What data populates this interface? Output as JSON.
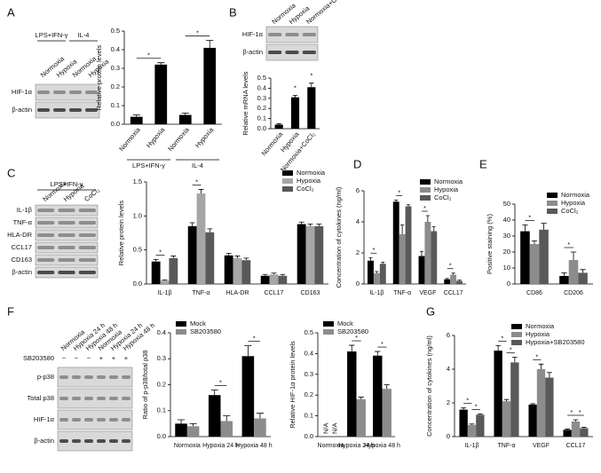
{
  "panels": [
    "A",
    "B",
    "C",
    "D",
    "E",
    "F",
    "G"
  ],
  "blots": [
    {
      "groups": [
        {
          "label": "LPS+IFN-γ",
          "span": [
            0,
            1
          ]
        },
        {
          "label": "IL-4",
          "span": [
            2,
            3
          ]
        }
      ],
      "lanes": [
        "Normoxia",
        "Hypoxia",
        "Normoxia",
        "Hypoxia"
      ],
      "rows": [
        "HIF-1α",
        "β-actin"
      ]
    },
    {
      "lanes": [
        "Normoxia",
        "Hypoxia",
        "Normoxia+CoCl₂"
      ],
      "rows": [
        "HIF-1α",
        "β-actin"
      ]
    },
    {
      "groups": [
        {
          "label": "LPS+IFN-γ",
          "span": [
            0,
            2
          ]
        }
      ],
      "lanes": [
        "Normoxia",
        "Hypoxia",
        "CoCl₂"
      ],
      "rows": [
        "IL-1β",
        "TNF-α",
        "HLA-DR",
        "CCL17",
        "CD163",
        "β-actin"
      ]
    },
    {
      "lanes": [
        "Normoxia",
        "Hypoxia 24 h",
        "Hypoxia 48 h",
        "Normoxia",
        "Hypoxia 24 h",
        "Hypoxia 48 h"
      ],
      "treatment": {
        "label": "SB203580",
        "values": [
          "−",
          "−",
          "−",
          "+",
          "+",
          "+"
        ]
      },
      "rows": [
        "p-p38",
        "Total p38",
        "HIF-1α",
        "β-actin"
      ]
    }
  ],
  "chart_data": [
    {
      "type": "bar",
      "ylabel": "Relative protein levels",
      "categories": [
        "Normoxia",
        "Hypoxia",
        "Normoxia",
        "Hypoxia"
      ],
      "groups": [
        {
          "label": "LPS+IFN-γ",
          "span": [
            0,
            1
          ]
        },
        {
          "label": "IL-4",
          "span": [
            2,
            3
          ]
        }
      ],
      "series": [
        {
          "color": "#000000",
          "values": [
            0.04,
            0.32,
            0.05,
            0.41
          ],
          "errors": [
            0.01,
            0.01,
            0.01,
            0.04
          ]
        }
      ],
      "ylim": [
        0,
        0.5
      ],
      "yticks": [
        {
          "value": 0,
          "label": "0.0"
        },
        {
          "value": 0.1,
          "label": "0.1"
        },
        {
          "value": 0.2,
          "label": "0.2"
        },
        {
          "value": 0.3,
          "label": "0.3"
        },
        {
          "value": 0.4,
          "label": "0.4"
        },
        {
          "value": 0.5,
          "label": "0.5"
        }
      ],
      "annotations": [
        {
          "text": "*",
          "from": [
            0,
            0
          ],
          "to": [
            1,
            0
          ]
        },
        {
          "text": "*",
          "from": [
            2,
            0
          ],
          "to": [
            3,
            0
          ]
        }
      ]
    },
    {
      "type": "bar",
      "ylabel": "Relative mRNA levels",
      "categories": [
        "Normoxia",
        "Hypoxia",
        "Normoxia+CoCl₂"
      ],
      "series": [
        {
          "color": "#000000",
          "values": [
            0.04,
            0.31,
            0.41
          ],
          "errors": [
            0.01,
            0.02,
            0.04
          ]
        }
      ],
      "ylim": [
        0,
        0.5
      ],
      "yticks": [
        {
          "value": 0,
          "label": "0.0"
        },
        {
          "value": 0.1,
          "label": "0.1"
        },
        {
          "value": 0.2,
          "label": "0.2"
        },
        {
          "value": 0.3,
          "label": "0.3"
        },
        {
          "value": 0.4,
          "label": "0.4"
        },
        {
          "value": 0.5,
          "label": "0.5"
        }
      ],
      "annotations": [
        {
          "text": "*",
          "from": [
            1,
            0
          ],
          "to": [
            1,
            0
          ]
        },
        {
          "text": "*",
          "from": [
            2,
            0
          ],
          "to": [
            2,
            0
          ]
        }
      ]
    },
    {
      "type": "bar",
      "ylabel": "Relative protein levels",
      "categories": [
        "IL-1β",
        "TNF-α",
        "HLA-DR",
        "CCL17",
        "CD163"
      ],
      "legend": "upper right",
      "series": [
        {
          "name": "Normoxia",
          "color": "#000000",
          "values": [
            0.33,
            0.85,
            0.42,
            0.12,
            0.88
          ],
          "errors": [
            0.03,
            0.05,
            0.03,
            0.02,
            0.03
          ]
        },
        {
          "name": "Hypoxia",
          "color": "#a6a6a6",
          "values": [
            0.05,
            1.33,
            0.38,
            0.14,
            0.85
          ],
          "errors": [
            0.01,
            0.06,
            0.03,
            0.02,
            0.03
          ]
        },
        {
          "name": "CoCl₂",
          "color": "#595959",
          "values": [
            0.38,
            0.76,
            0.35,
            0.12,
            0.85
          ],
          "errors": [
            0.03,
            0.05,
            0.03,
            0.02,
            0.03
          ]
        }
      ],
      "ylim": [
        0,
        1.5
      ],
      "yticks": [
        {
          "value": 0,
          "label": "0.0"
        },
        {
          "value": 0.5,
          "label": "0.5"
        },
        {
          "value": 1,
          "label": "1.0"
        },
        {
          "value": 1.5,
          "label": "1.5"
        }
      ],
      "annotations": [
        {
          "text": "*",
          "from": [
            0,
            0
          ],
          "to": [
            0,
            1
          ]
        },
        {
          "text": "*",
          "from": [
            1,
            0
          ],
          "to": [
            1,
            1
          ]
        }
      ]
    },
    {
      "type": "bar",
      "ylabel": "Concentration of cytokines (ng/ml)",
      "categories": [
        "IL-1β",
        "TNF-α",
        "VEGF",
        "CCL17"
      ],
      "legend": "upper right",
      "series": [
        {
          "name": "Normoxia",
          "color": "#000000",
          "values": [
            1.5,
            5.3,
            1.8,
            0.3
          ],
          "errors": [
            0.2,
            0.1,
            0.3,
            0.05
          ]
        },
        {
          "name": "Hypoxia",
          "color": "#8c8c8c",
          "values": [
            0.7,
            3.2,
            4.0,
            0.6
          ],
          "errors": [
            0.1,
            0.6,
            0.4,
            0.1
          ]
        },
        {
          "name": "CoCl₂",
          "color": "#595959",
          "values": [
            1.3,
            5.0,
            3.4,
            0.2
          ],
          "errors": [
            0.1,
            0.1,
            0.3,
            0.05
          ]
        }
      ],
      "ylim": [
        0,
        6
      ],
      "yticks": [
        0,
        2,
        4,
        6
      ],
      "annotations": [
        {
          "text": "*",
          "from": [
            0,
            0
          ],
          "to": [
            0,
            1
          ]
        },
        {
          "text": "*",
          "from": [
            1,
            0
          ],
          "to": [
            1,
            1
          ]
        },
        {
          "text": "*",
          "from": [
            2,
            0
          ],
          "to": [
            2,
            1
          ]
        },
        {
          "text": "*",
          "from": [
            3,
            0
          ],
          "to": [
            3,
            1
          ]
        }
      ]
    },
    {
      "type": "bar",
      "ylabel": "Positive staining (%)",
      "categories": [
        "CD86",
        "CD206"
      ],
      "legend": "upper right",
      "series": [
        {
          "name": "Normoxia",
          "color": "#000000",
          "values": [
            33,
            5
          ],
          "errors": [
            4,
            2
          ]
        },
        {
          "name": "Hypoxia",
          "color": "#8c8c8c",
          "values": [
            25,
            15
          ],
          "errors": [
            2,
            5
          ]
        },
        {
          "name": "CoCl₂",
          "color": "#595959",
          "values": [
            34,
            7
          ],
          "errors": [
            4,
            2
          ]
        }
      ],
      "ylim": [
        0,
        50
      ],
      "yticks": [
        0,
        10,
        20,
        30,
        40,
        50
      ],
      "annotations": [
        {
          "text": "*",
          "from": [
            0,
            0
          ],
          "to": [
            0,
            1
          ]
        },
        {
          "text": "*",
          "from": [
            1,
            0
          ],
          "to": [
            1,
            1
          ]
        }
      ]
    },
    {
      "type": "bar",
      "ylabel": "Ratio of p-p38/total p38",
      "categories": [
        "Normoxia",
        "Hypoxia 24 h",
        "Hypoxia 48 h"
      ],
      "legend": "upper left",
      "series": [
        {
          "name": "Mock",
          "color": "#000000",
          "values": [
            0.05,
            0.16,
            0.31
          ],
          "errors": [
            0.015,
            0.02,
            0.04
          ]
        },
        {
          "name": "SB203580",
          "color": "#8c8c8c",
          "values": [
            0.04,
            0.06,
            0.07
          ],
          "errors": [
            0.01,
            0.02,
            0.02
          ]
        }
      ],
      "ylim": [
        0,
        0.4
      ],
      "yticks": [
        {
          "value": 0,
          "label": "0.0"
        },
        {
          "value": 0.1,
          "label": "0.1"
        },
        {
          "value": 0.2,
          "label": "0.2"
        },
        {
          "value": 0.3,
          "label": "0.3"
        },
        {
          "value": 0.4,
          "label": "0.4"
        }
      ],
      "annotations": [
        {
          "text": "*",
          "from": [
            1,
            0
          ],
          "to": [
            1,
            1
          ]
        },
        {
          "text": "*",
          "from": [
            2,
            0
          ],
          "to": [
            2,
            1
          ]
        }
      ]
    },
    {
      "type": "bar",
      "ylabel": "Relative HIF-1α protein levels",
      "categories": [
        "Normoxia",
        "Hypoxia 24 h",
        "Hypoxia 48 h"
      ],
      "legend": "upper left",
      "series": [
        {
          "name": "Mock",
          "color": "#000000",
          "values": [
            null,
            0.41,
            0.39
          ],
          "value_labels": [
            "N/A",
            null,
            null
          ],
          "errors": [
            null,
            0.03,
            0.02
          ]
        },
        {
          "name": "SB203580",
          "color": "#8c8c8c",
          "values": [
            null,
            0.18,
            0.23
          ],
          "value_labels": [
            "N/A",
            null,
            null
          ],
          "errors": [
            null,
            0.01,
            0.02
          ]
        }
      ],
      "ylim": [
        0,
        0.5
      ],
      "yticks": [
        {
          "value": 0,
          "label": "0.0"
        },
        {
          "value": 0.1,
          "label": "0.1"
        },
        {
          "value": 0.2,
          "label": "0.2"
        },
        {
          "value": 0.3,
          "label": "0.3"
        },
        {
          "value": 0.4,
          "label": "0.4"
        },
        {
          "value": 0.5,
          "label": "0.5"
        }
      ],
      "annotations": [
        {
          "text": "*",
          "from": [
            1,
            0
          ],
          "to": [
            1,
            1
          ]
        },
        {
          "text": "*",
          "from": [
            2,
            0
          ],
          "to": [
            2,
            1
          ]
        }
      ]
    },
    {
      "type": "bar",
      "ylabel": "Concentration of cytokines (ng/ml)",
      "categories": [
        "IL-1β",
        "TNF-α",
        "VEGF",
        "CCL17"
      ],
      "legend": "upper right",
      "series": [
        {
          "name": "Normoxia",
          "color": "#000000",
          "values": [
            1.6,
            5.1,
            1.9,
            0.4
          ],
          "errors": [
            0.1,
            0.3,
            0.05,
            0.05
          ]
        },
        {
          "name": "Hypoxia",
          "color": "#8c8c8c",
          "values": [
            0.7,
            2.1,
            4.0,
            0.9
          ],
          "errors": [
            0.05,
            0.1,
            0.3,
            0.1
          ]
        },
        {
          "name": "Hypoxia+SB203580",
          "color": "#595959",
          "values": [
            1.3,
            4.4,
            3.5,
            0.5
          ],
          "errors": [
            0.05,
            0.3,
            0.3,
            0.05
          ]
        }
      ],
      "ylim": [
        0,
        6
      ],
      "yticks": [
        0,
        2,
        4,
        6
      ],
      "annotations": [
        {
          "text": "*",
          "from": [
            0,
            0
          ],
          "to": [
            0,
            1
          ]
        },
        {
          "text": "*",
          "from": [
            0,
            1
          ],
          "to": [
            0,
            2
          ]
        },
        {
          "text": "*",
          "from": [
            1,
            0
          ],
          "to": [
            1,
            1
          ]
        },
        {
          "text": "*",
          "from": [
            1,
            1
          ],
          "to": [
            1,
            2
          ]
        },
        {
          "text": "*",
          "from": [
            2,
            0
          ],
          "to": [
            2,
            1
          ]
        },
        {
          "text": "*",
          "from": [
            3,
            0
          ],
          "to": [
            3,
            1
          ]
        },
        {
          "text": "*",
          "from": [
            3,
            1
          ],
          "to": [
            3,
            2
          ]
        }
      ]
    }
  ]
}
